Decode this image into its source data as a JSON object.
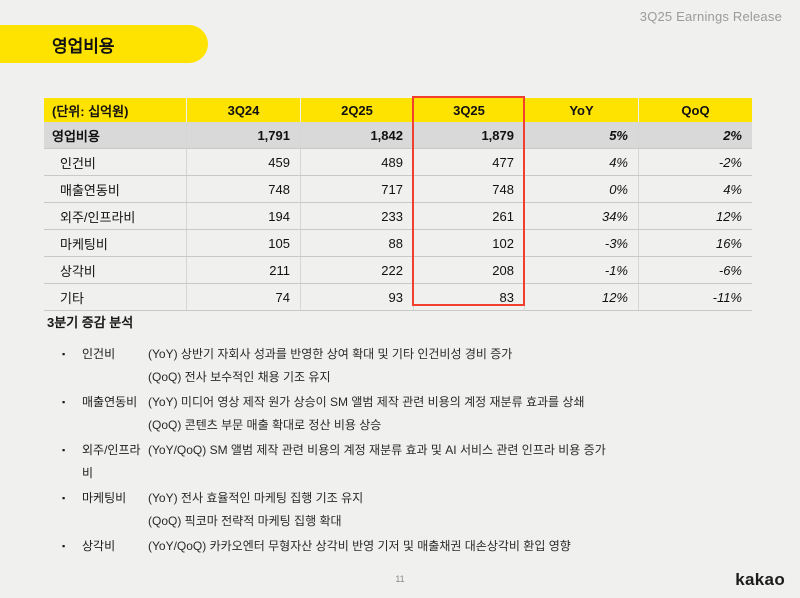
{
  "header": {
    "release_label": "3Q25 Earnings Release"
  },
  "badge": {
    "title": "영업비용"
  },
  "table": {
    "unit_label": "(단위: 십억원)",
    "columns": [
      "3Q24",
      "2Q25",
      "3Q25",
      "YoY",
      "QoQ"
    ],
    "highlight_column": "3Q25",
    "rows": [
      {
        "name": "영업비용",
        "values": [
          "1,791",
          "1,842",
          "1,879",
          "5%",
          "2%"
        ]
      },
      {
        "name": "인건비",
        "values": [
          "459",
          "489",
          "477",
          "4%",
          "-2%"
        ]
      },
      {
        "name": "매출연동비",
        "values": [
          "748",
          "717",
          "748",
          "0%",
          "4%"
        ]
      },
      {
        "name": "외주/인프라비",
        "values": [
          "194",
          "233",
          "261",
          "34%",
          "12%"
        ]
      },
      {
        "name": "마케팅비",
        "values": [
          "105",
          "88",
          "102",
          "-3%",
          "16%"
        ]
      },
      {
        "name": "상각비",
        "values": [
          "211",
          "222",
          "208",
          "-1%",
          "-6%"
        ]
      },
      {
        "name": "기타",
        "values": [
          "74",
          "93",
          "83",
          "12%",
          "-11%"
        ]
      }
    ]
  },
  "analysis": {
    "heading": "3분기 증감 분석",
    "bullet_glyph": "▪",
    "items": [
      {
        "label": "인건비",
        "lines": [
          "(YoY) 상반기 자회사 성과를 반영한 상여 확대 및 기타 인건비성 경비 증가",
          "(QoQ) 전사 보수적인 채용 기조 유지"
        ]
      },
      {
        "label": "매출연동비",
        "lines": [
          "(YoY) 미디어 영상 제작 원가 상승이 SM 앨범 제작 관련 비용의 계정 재분류 효과를 상쇄",
          "(QoQ) 콘텐츠 부문 매출 확대로 정산 비용 상승"
        ]
      },
      {
        "label": "외주/인프라비",
        "lines": [
          "(YoY/QoQ) SM 앨범 제작 관련 비용의 계정 재분류 효과 및 AI 서비스 관련 인프라 비용 증가"
        ]
      },
      {
        "label": "마케팅비",
        "lines": [
          "(YoY) 전사 효율적인 마케팅 집행 기조 유지",
          "(QoQ) 픽코마 전략적 마케팅 집행 확대"
        ]
      },
      {
        "label": "상각비",
        "lines": [
          "(YoY/QoQ) 카카오엔터 무형자산 상각비 반영 기저 및 매출채권 대손상각비 환입 영향"
        ]
      }
    ]
  },
  "footer": {
    "page_number": "11",
    "logo": "kakao"
  },
  "colors": {
    "brand_yellow": "#FFE300",
    "highlight_red": "#F23F2E",
    "total_row_bg": "#D9D9D9",
    "page_background": "#F0F0EE"
  }
}
